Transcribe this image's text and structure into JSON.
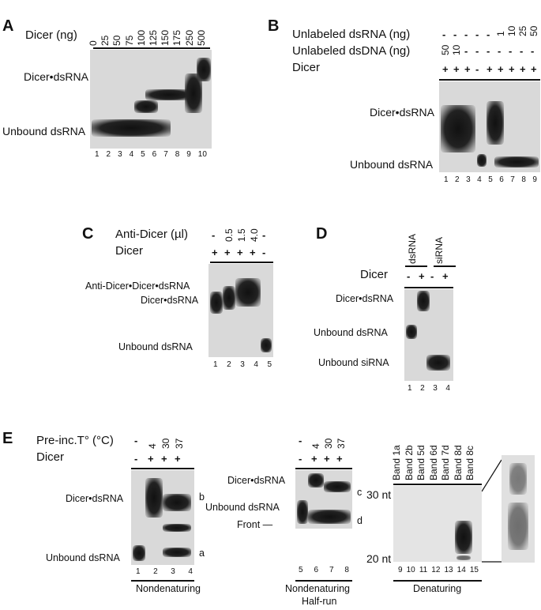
{
  "panels": {
    "A": {
      "letter": "A",
      "dicer_label": "Dicer (ng)",
      "concentrations": [
        "0",
        "25",
        "50",
        "75",
        "100",
        "125",
        "150",
        "175",
        "250",
        "500"
      ],
      "complex_label": "Dicer•dsRNA",
      "unbound_label": "Unbound dsRNA",
      "lanes": [
        "1",
        "2",
        "3",
        "4",
        "5",
        "6",
        "7",
        "8",
        "9",
        "10"
      ]
    },
    "B": {
      "letter": "B",
      "row1_label": "Unlabeled dsRNA (ng)",
      "row2_label": "Unlabeled dsDNA (ng)",
      "row3_label": "Dicer",
      "row1_values": [
        "-",
        "-",
        "-",
        "-",
        "-",
        "1",
        "10",
        "25",
        "50"
      ],
      "row2_values": [
        "50",
        "10",
        "-",
        "-",
        "-",
        "-",
        "-",
        "-",
        "-"
      ],
      "row3_values": [
        "+",
        "+",
        "+",
        "-",
        "+",
        "+",
        "+",
        "+",
        "+"
      ],
      "complex_label": "Dicer•dsRNA",
      "unbound_label": "Unbound dsRNA",
      "lanes": [
        "1",
        "2",
        "3",
        "4",
        "5",
        "6",
        "7",
        "8",
        "9"
      ]
    },
    "C": {
      "letter": "C",
      "row1_label": "Anti-Dicer (µl)",
      "row2_label": "Dicer",
      "row1_values": [
        "-",
        "0.5",
        "1.5",
        "4.0",
        "-"
      ],
      "row2_values": [
        "+",
        "+",
        "+",
        "+",
        "-"
      ],
      "supershift_label": "Anti-Dicer•Dicer•dsRNA",
      "complex_label": "Dicer•dsRNA",
      "unbound_label": "Unbound dsRNA",
      "lanes": [
        "1",
        "2",
        "3",
        "4",
        "5"
      ]
    },
    "D": {
      "letter": "D",
      "group1": "dsRNA",
      "group2": "siRNA",
      "dicer_label": "Dicer",
      "dicer_values": [
        "-",
        "+",
        "-",
        "+"
      ],
      "complex_label": "Dicer•dsRNA",
      "unbound_ds_label": "Unbound dsRNA",
      "unbound_si_label": "Unbound siRNA",
      "lanes": [
        "1",
        "2",
        "3",
        "4"
      ]
    },
    "E": {
      "letter": "E",
      "preinc_label": "Pre-inc.T° (°C)",
      "dicer_label": "Dicer",
      "temps": [
        "-",
        "4",
        "30",
        "37"
      ],
      "dicer_values": [
        "-",
        "+",
        "+",
        "+"
      ],
      "left": {
        "complex_label": "Dicer•dsRNA",
        "unbound_label": "Unbound dsRNA",
        "band_b": "b",
        "band_a": "a",
        "lanes": [
          "1",
          "2",
          "3",
          "4"
        ],
        "caption": "Nondenaturing"
      },
      "middle": {
        "temps": [
          "-",
          "4",
          "30",
          "37"
        ],
        "dicer_values": [
          "-",
          "+",
          "+",
          "+"
        ],
        "complex_label": "Dicer•dsRNA",
        "unbound_label": "Unbound dsRNA",
        "front_label": "Front —",
        "band_c": "c",
        "band_d": "d",
        "lanes": [
          "5",
          "6",
          "7",
          "8"
        ],
        "caption_line1": "Nondenaturing",
        "caption_line2": "Half-run"
      },
      "right": {
        "bands": [
          "Band 1a",
          "Band 2b",
          "Band 5d",
          "Band 6d",
          "Band 7d",
          "Band 8d",
          "Band 8c"
        ],
        "marker_30": "30 nt",
        "marker_20": "20 nt",
        "lanes": [
          "9",
          "10",
          "11",
          "12",
          "13",
          "14",
          "15"
        ],
        "caption": "Denaturing"
      }
    }
  }
}
